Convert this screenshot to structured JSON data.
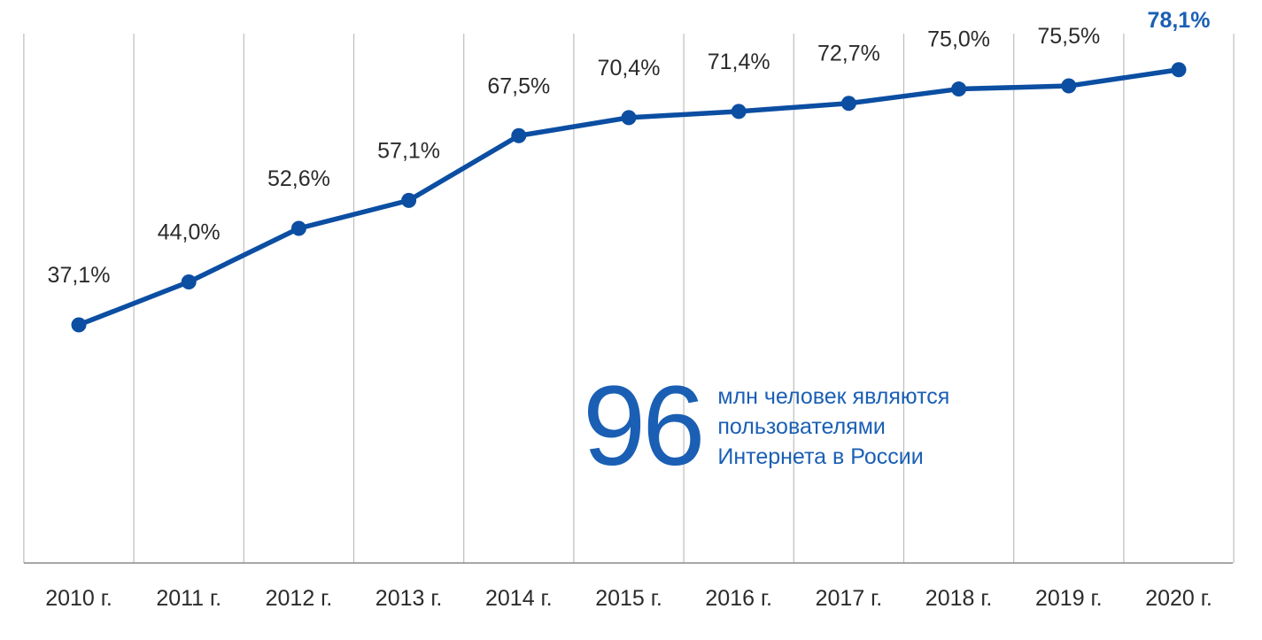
{
  "chart_data": {
    "type": "line",
    "categories": [
      "2010 г.",
      "2011 г.",
      "2012 г.",
      "2013 г.",
      "2014 г.",
      "2015 г.",
      "2016 г.",
      "2017 г.",
      "2018 г.",
      "2019 г.",
      "2020 г."
    ],
    "values": [
      37.1,
      44.0,
      52.6,
      57.1,
      67.5,
      70.4,
      71.4,
      72.7,
      75.0,
      75.5,
      78.1
    ],
    "value_labels": [
      "37,1%",
      "44,0%",
      "52,6%",
      "57,1%",
      "67,5%",
      "70,4%",
      "71,4%",
      "72,7%",
      "75,0%",
      "75,5%",
      "78,1%"
    ],
    "highlight_index": 10,
    "title": "",
    "xlabel": "",
    "ylabel": "",
    "grid": "vertical",
    "colors": {
      "line": "#0b4ea2",
      "highlight": "#1a5fb4",
      "grid": "#bdbdbd",
      "axis": "#8c8c8c",
      "text": "#2b2b2b"
    }
  },
  "callout": {
    "number": "96",
    "lines": [
      "млн человек являются",
      "пользователями",
      "Интернета в России"
    ]
  }
}
